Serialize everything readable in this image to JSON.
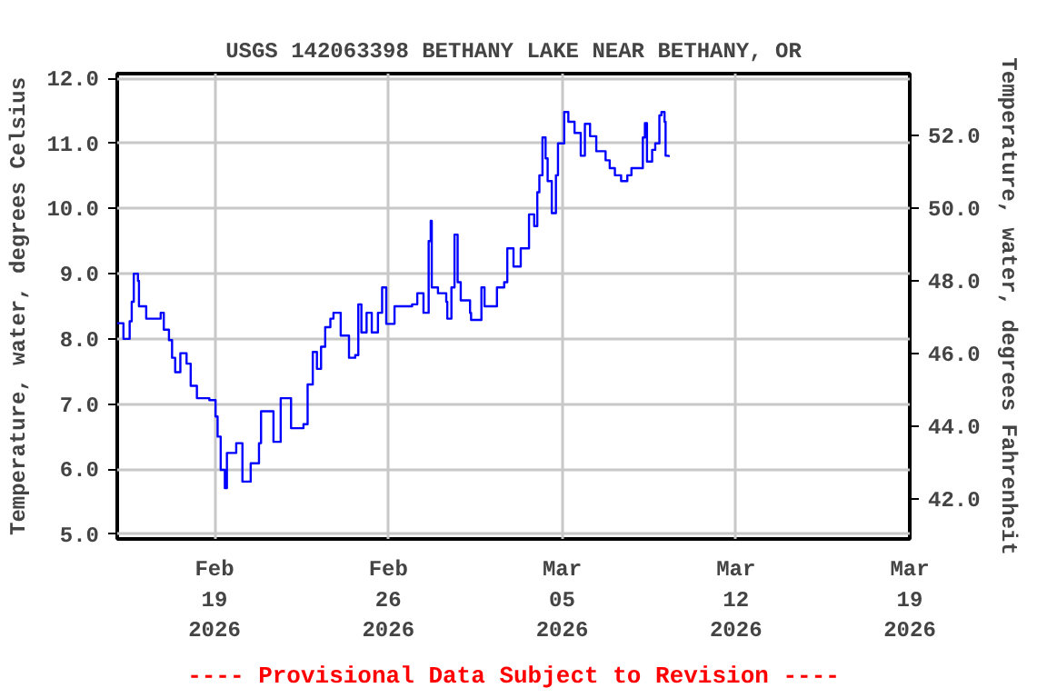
{
  "chart_data": {
    "type": "step",
    "title": "USGS 142063398 BETHANY LAKE NEAR BETHANY, OR",
    "ylabel": "Temperature, water, degrees Celsius",
    "y2label": "Temperature, water, degrees Fahrenheit",
    "annotations": [
      "---- Provisional Data Subject to Revision ----"
    ],
    "xlim": [
      "2026-02-15T02:00",
      "2026-03-19"
    ],
    "xticks": [
      {
        "value": "2026-02-19",
        "label": "Feb\n19\n2026"
      },
      {
        "value": "2026-02-26",
        "label": "Feb\n26\n2026"
      },
      {
        "value": "2026-03-05",
        "label": "Mar\n05\n2026"
      },
      {
        "value": "2026-03-12",
        "label": "Mar\n12\n2026"
      },
      {
        "value": "2026-03-19",
        "label": "Mar\n19\n2026"
      }
    ],
    "ylim": [
      4.93,
      12.07
    ],
    "yticks": [
      {
        "value": 5,
        "label": "5.0"
      },
      {
        "value": 6,
        "label": "6.0"
      },
      {
        "value": 7,
        "label": "7.0"
      },
      {
        "value": 8,
        "label": "8.0"
      },
      {
        "value": 9,
        "label": "9.0"
      },
      {
        "value": 10,
        "label": "10.0"
      },
      {
        "value": 11,
        "label": "11.0"
      },
      {
        "value": 12,
        "label": "12.0"
      }
    ],
    "y2lim": [
      40.9,
      53.7
    ],
    "y2ticks": [
      {
        "value": 42,
        "label": "42.0"
      },
      {
        "value": 44,
        "label": "44.0"
      },
      {
        "value": 46,
        "label": "46.0"
      },
      {
        "value": 48,
        "label": "48.0"
      },
      {
        "value": 50,
        "label": "50.0"
      },
      {
        "value": 52,
        "label": "52.0"
      }
    ],
    "grid": true,
    "x": [
      "2026-02-15T02:00",
      "2026-02-15T08:00",
      "2026-02-15T14:00",
      "2026-02-15T16:00",
      "2026-02-15T18:00",
      "2026-02-15T22:00",
      "2026-02-15T23:00",
      "2026-02-16T06:00",
      "2026-02-16T20:00",
      "2026-02-16T23:00",
      "2026-02-17T04:00",
      "2026-02-17T07:00",
      "2026-02-17T10:00",
      "2026-02-17T15:00",
      "2026-02-17T21:00",
      "2026-02-18T01:00",
      "2026-02-18T07:00",
      "2026-02-18T19:00",
      "2026-02-19T01:00",
      "2026-02-19T03:00",
      "2026-02-19T06:00",
      "2026-02-19T10:00",
      "2026-02-19T12:00",
      "2026-02-19T21:00",
      "2026-02-20T03:00",
      "2026-02-20T09:00",
      "2026-02-20T11:00",
      "2026-02-20T19:00",
      "2026-02-20T21:00",
      "2026-02-21T03:00",
      "2026-02-21T09:00",
      "2026-02-21T16:00",
      "2026-02-22T02:00",
      "2026-02-22T14:00",
      "2026-02-22T18:00",
      "2026-02-22T23:00",
      "2026-02-23T03:00",
      "2026-02-23T07:00",
      "2026-02-23T11:00",
      "2026-02-23T16:00",
      "2026-02-23T19:00",
      "2026-02-24T02:00",
      "2026-02-24T10:00",
      "2026-02-24T16:00",
      "2026-02-24T19:00",
      "2026-02-24T22:00",
      "2026-02-25T03:00",
      "2026-02-25T08:00",
      "2026-02-25T14:00",
      "2026-02-25T18:00",
      "2026-02-25T22:00",
      "2026-02-26T06:00",
      "2026-02-26T23:00",
      "2026-02-27T04:00",
      "2026-02-27T10:00",
      "2026-02-27T15:00",
      "2026-02-27T17:00",
      "2026-02-27T18:00",
      "2026-02-28T00:00",
      "2026-02-28T08:00",
      "2026-02-28T09:00",
      "2026-02-28T13:00",
      "2026-02-28T16:00",
      "2026-02-28T19:00",
      "2026-02-28T22:00",
      "2026-03-01T07:00",
      "2026-03-01T08:00",
      "2026-03-01T18:00",
      "2026-03-01T21:00",
      "2026-03-02T09:00",
      "2026-03-02T16:00",
      "2026-03-02T19:00",
      "2026-03-03T01:00",
      "2026-03-03T08:00",
      "2026-03-03T16:00",
      "2026-03-03T21:00",
      "2026-03-04T00:00",
      "2026-03-04T02:00",
      "2026-03-04T05:00",
      "2026-03-04T08:00",
      "2026-03-04T10:00",
      "2026-03-04T14:00",
      "2026-03-04T18:00",
      "2026-03-04T20:00",
      "2026-03-05T02:00",
      "2026-03-05T06:00",
      "2026-03-05T12:00",
      "2026-03-05T18:00",
      "2026-03-05T22:00",
      "2026-03-06T03:00",
      "2026-03-06T09:00",
      "2026-03-06T18:00",
      "2026-03-06T22:00",
      "2026-03-07T03:00",
      "2026-03-07T09:00",
      "2026-03-07T15:00",
      "2026-03-07T19:00",
      "2026-03-08T02:00",
      "2026-03-08T06:00",
      "2026-03-08T08:00",
      "2026-03-08T10:00",
      "2026-03-08T15:00",
      "2026-03-08T18:00",
      "2026-03-08T21:00",
      "2026-03-08T22:00",
      "2026-03-09T00:00",
      "2026-03-09T03:00",
      "2026-03-09T04:00",
      "2026-03-09T07:00"
    ],
    "series": [
      {
        "color": "#0000ff",
        "values": [
          8.24,
          8.0,
          8.27,
          8.57,
          9.0,
          8.89,
          8.5,
          8.31,
          8.4,
          8.14,
          7.98,
          7.71,
          7.49,
          7.78,
          7.62,
          7.28,
          7.09,
          7.06,
          6.81,
          6.5,
          5.99,
          5.71,
          6.25,
          6.4,
          5.81,
          5.81,
          6.09,
          6.4,
          6.89,
          6.89,
          6.42,
          7.09,
          6.63,
          6.69,
          7.3,
          7.8,
          7.54,
          7.88,
          8.18,
          8.31,
          8.4,
          8.05,
          7.71,
          7.75,
          8.53,
          8.1,
          8.4,
          8.1,
          8.4,
          8.79,
          8.23,
          8.5,
          8.53,
          8.7,
          8.4,
          9.5,
          9.81,
          8.79,
          8.7,
          8.57,
          8.31,
          8.79,
          9.6,
          8.87,
          8.59,
          8.4,
          8.29,
          8.79,
          8.5,
          8.79,
          8.87,
          9.39,
          9.11,
          9.39,
          9.91,
          9.73,
          10.25,
          10.51,
          11.09,
          10.77,
          10.42,
          9.93,
          10.51,
          11.0,
          11.48,
          11.33,
          11.16,
          10.81,
          11.3,
          11.11,
          10.88,
          10.74,
          10.62,
          10.51,
          10.42,
          10.51,
          10.62,
          10.62,
          11.09,
          11.31,
          10.72,
          10.9,
          11.0,
          11.0,
          11.43,
          11.48,
          11.33,
          10.81,
          10.79
        ]
      }
    ]
  }
}
